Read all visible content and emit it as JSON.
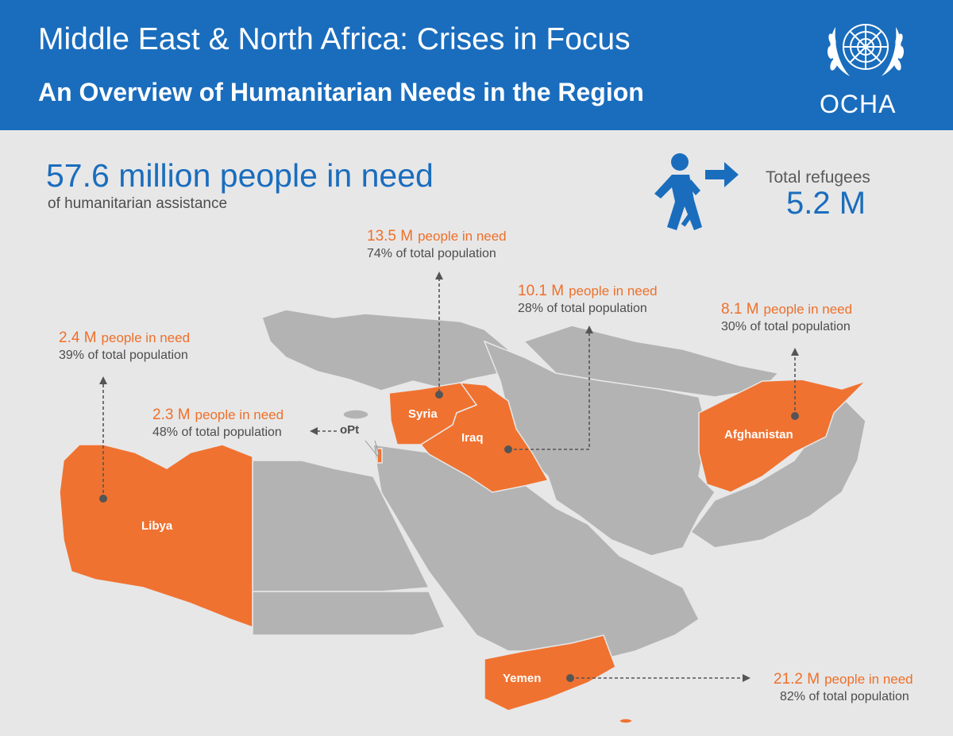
{
  "header": {
    "title": "Middle East & North Africa: Crises in Focus",
    "subtitle": "An Overview of Humanitarian Needs in the Region",
    "logo_text": "OCHA"
  },
  "summary": {
    "total_in_need": "57.6 million people in need",
    "total_in_need_sub": "of humanitarian assistance",
    "refugees_label": "Total refugees",
    "refugees_value": "5.2 M"
  },
  "colors": {
    "header_blue": "#1a6dbd",
    "crisis_orange": "#f07230",
    "land_grey": "#b3b3b3",
    "background": "#e7e7e8"
  },
  "icons": [
    "un-emblem-icon",
    "refugee-walking-icon",
    "arrow-right-icon"
  ],
  "countries": [
    {
      "name": "Syria",
      "in_need": "13.5 M",
      "label": "people in need",
      "pct": "74% of total population"
    },
    {
      "name": "Iraq",
      "in_need": "10.1 M",
      "label": "people in need",
      "pct": "28% of total population"
    },
    {
      "name": "Afghanistan",
      "in_need": "8.1 M",
      "label": "people in need",
      "pct": "30% of total population"
    },
    {
      "name": "Libya",
      "in_need": "2.4 M",
      "label": "people in need",
      "pct": "39% of total population"
    },
    {
      "name": "oPt",
      "in_need": "2.3 M",
      "label": "people in need",
      "pct": "48% of total population"
    },
    {
      "name": "Yemen",
      "in_need": "21.2 M",
      "label": "people in need",
      "pct": "82% of total population"
    }
  ]
}
